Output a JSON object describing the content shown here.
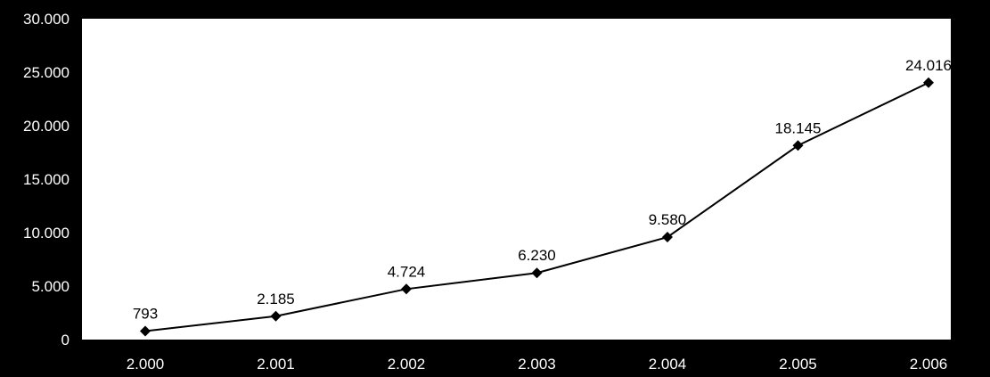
{
  "chart_data": {
    "type": "line",
    "title": "",
    "xlabel": "",
    "ylabel": "",
    "categories": [
      "2.000",
      "2.001",
      "2.002",
      "2.003",
      "2.004",
      "2.005",
      "2.006"
    ],
    "series": [
      {
        "values": [
          793,
          2185,
          4724,
          6230,
          9580,
          18145,
          24016
        ]
      }
    ],
    "data_labels": [
      "793",
      "2.185",
      "4.724",
      "6.230",
      "9.580",
      "18.145",
      "24.016"
    ],
    "y_ticks": [
      "0",
      "5.000",
      "10.000",
      "15.000",
      "20.000",
      "25.000",
      "30.000"
    ],
    "ylim": [
      0,
      30000
    ],
    "grid": false,
    "legend": "none",
    "colors": {
      "background": "#000000",
      "plot_area": "#ffffff",
      "line": "#000000",
      "marker": "#000000",
      "tick_text": "#ffffff"
    }
  }
}
